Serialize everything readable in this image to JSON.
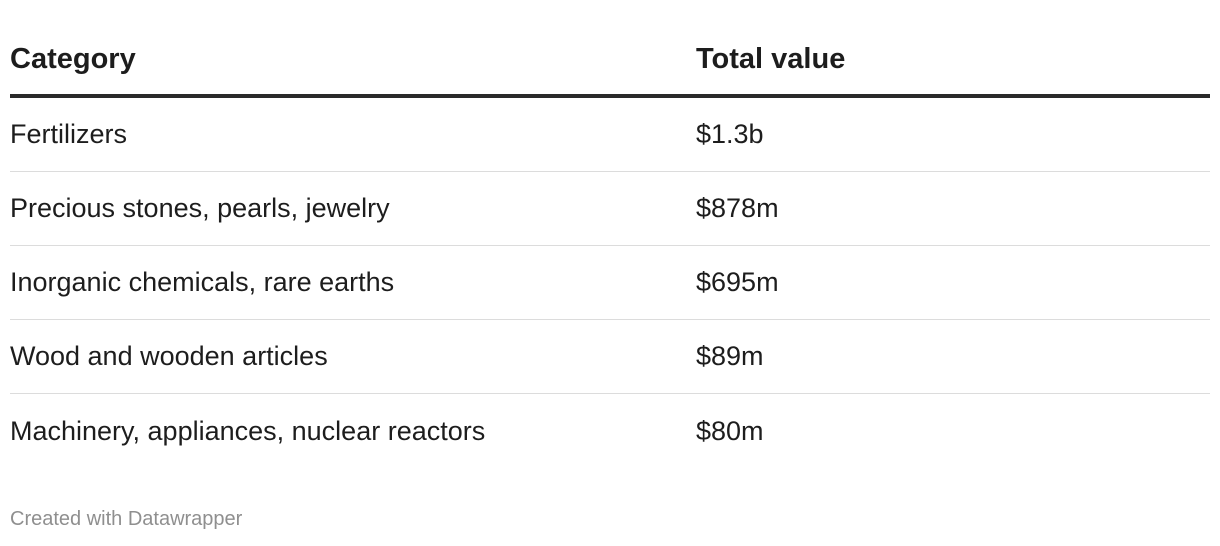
{
  "chart_data": {
    "type": "table",
    "columns": [
      "Category",
      "Total value"
    ],
    "rows": [
      {
        "category": "Fertilizers",
        "value": "$1.3b"
      },
      {
        "category": "Precious stones, pearls, jewelry",
        "value": "$878m"
      },
      {
        "category": "Inorganic chemicals, rare earths",
        "value": "$695m"
      },
      {
        "category": "Wood and wooden articles",
        "value": "$89m"
      },
      {
        "category": "Machinery, appliances, nuclear reactors",
        "value": "$80m"
      }
    ],
    "footer": "Created with Datawrapper"
  }
}
